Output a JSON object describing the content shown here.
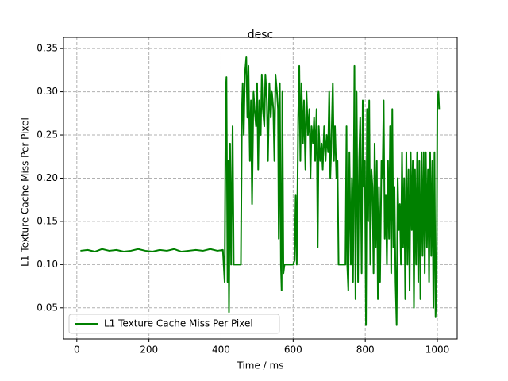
{
  "chart_data": {
    "type": "line",
    "title": "desc",
    "xlabel": "Time / ms",
    "ylabel": "L1 Texture Cache Miss Per Pixel",
    "x": [
      10,
      30,
      50,
      70,
      90,
      110,
      130,
      150,
      170,
      190,
      210,
      230,
      250,
      270,
      290,
      310,
      330,
      350,
      370,
      390,
      405,
      410,
      413,
      415,
      418,
      420,
      422,
      425,
      428,
      432,
      435,
      440,
      445,
      450,
      455,
      458,
      460,
      463,
      466,
      470,
      473,
      476,
      480,
      483,
      486,
      490,
      493,
      497,
      500,
      503,
      506,
      510,
      513,
      516,
      520,
      523,
      527,
      530,
      534,
      538,
      541,
      545,
      548,
      551,
      555,
      558,
      560,
      563,
      566,
      568,
      570,
      573,
      576,
      580,
      585,
      590,
      595,
      600,
      604,
      607,
      610,
      614,
      617,
      620,
      623,
      627,
      630,
      634,
      637,
      641,
      645,
      648,
      651,
      655,
      658,
      661,
      665,
      668,
      671,
      675,
      679,
      682,
      686,
      690,
      693,
      697,
      700,
      703,
      706,
      710,
      713,
      716,
      720,
      723,
      726,
      730,
      735,
      740,
      745,
      748,
      750,
      753,
      756,
      760,
      763,
      766,
      770,
      773,
      776,
      780,
      783,
      786,
      790,
      793,
      796,
      799,
      802,
      805,
      808,
      811,
      814,
      817,
      820,
      823,
      826,
      829,
      832,
      835,
      838,
      841,
      845,
      848,
      851,
      854,
      857,
      860,
      863,
      866,
      869,
      872,
      875,
      878,
      881,
      884,
      887,
      890,
      893,
      896,
      899,
      902,
      905,
      908,
      911,
      914,
      917,
      920,
      923,
      926,
      929,
      932,
      935,
      938,
      941,
      944,
      947,
      950,
      953,
      956,
      959,
      962,
      965,
      968,
      971,
      974,
      977,
      980,
      983,
      986,
      989,
      992,
      995,
      998,
      1000,
      1003,
      1005
    ],
    "series": [
      {
        "name": "L1 Texture Cache Miss Per Pixel",
        "color": "#008000",
        "values": [
          0.116,
          0.117,
          0.115,
          0.118,
          0.116,
          0.117,
          0.115,
          0.116,
          0.118,
          0.116,
          0.115,
          0.117,
          0.116,
          0.118,
          0.115,
          0.116,
          0.117,
          0.116,
          0.118,
          0.116,
          0.117,
          0.08,
          0.3,
          0.317,
          0.08,
          0.22,
          0.045,
          0.24,
          0.1,
          0.26,
          0.1,
          0.1,
          0.1,
          0.1,
          0.1,
          0.28,
          0.31,
          0.25,
          0.32,
          0.34,
          0.27,
          0.33,
          0.22,
          0.29,
          0.17,
          0.3,
          0.28,
          0.26,
          0.31,
          0.21,
          0.29,
          0.25,
          0.32,
          0.28,
          0.26,
          0.32,
          0.29,
          0.22,
          0.31,
          0.27,
          0.3,
          0.28,
          0.22,
          0.32,
          0.3,
          0.28,
          0.13,
          0.31,
          0.1,
          0.07,
          0.3,
          0.09,
          0.1,
          0.1,
          0.1,
          0.1,
          0.1,
          0.1,
          0.105,
          0.18,
          0.1,
          0.27,
          0.33,
          0.22,
          0.31,
          0.24,
          0.29,
          0.21,
          0.3,
          0.25,
          0.28,
          0.2,
          0.26,
          0.24,
          0.27,
          0.22,
          0.28,
          0.12,
          0.26,
          0.22,
          0.24,
          0.21,
          0.26,
          0.22,
          0.25,
          0.23,
          0.3,
          0.2,
          0.24,
          0.31,
          0.22,
          0.26,
          0.2,
          0.22,
          0.1,
          0.1,
          0.1,
          0.1,
          0.1,
          0.26,
          0.1,
          0.07,
          0.23,
          0.1,
          0.2,
          0.08,
          0.33,
          0.06,
          0.3,
          0.08,
          0.22,
          0.27,
          0.09,
          0.29,
          0.19,
          0.22,
          0.03,
          0.28,
          0.15,
          0.29,
          0.1,
          0.21,
          0.19,
          0.09,
          0.24,
          0.12,
          0.22,
          0.06,
          0.19,
          0.08,
          0.22,
          0.2,
          0.29,
          0.13,
          0.18,
          0.1,
          0.22,
          0.13,
          0.26,
          0.09,
          0.28,
          0.12,
          0.19,
          0.08,
          0.03,
          0.2,
          0.14,
          0.17,
          0.1,
          0.23,
          0.12,
          0.2,
          0.06,
          0.23,
          0.1,
          0.21,
          0.07,
          0.23,
          0.14,
          0.22,
          0.05,
          0.21,
          0.1,
          0.23,
          0.08,
          0.22,
          0.06,
          0.23,
          0.11,
          0.23,
          0.09,
          0.23,
          0.12,
          0.21,
          0.08,
          0.23,
          0.11,
          0.22,
          0.05,
          0.23,
          0.04,
          0.08,
          0.29,
          0.3,
          0.28
        ]
      }
    ],
    "xlim": [
      -37,
      1055
    ],
    "ylim": [
      0.014,
      0.363
    ],
    "xticks": [
      0,
      200,
      400,
      600,
      800,
      1000
    ],
    "yticks": [
      0.05,
      {
        "value": 0.1,
        "label": "0.10"
      },
      0.15,
      {
        "value": 0.2,
        "label": "0.20"
      },
      0.25,
      {
        "value": 0.3,
        "label": "0.30"
      },
      0.35
    ],
    "grid": true,
    "legend": "lower left"
  }
}
